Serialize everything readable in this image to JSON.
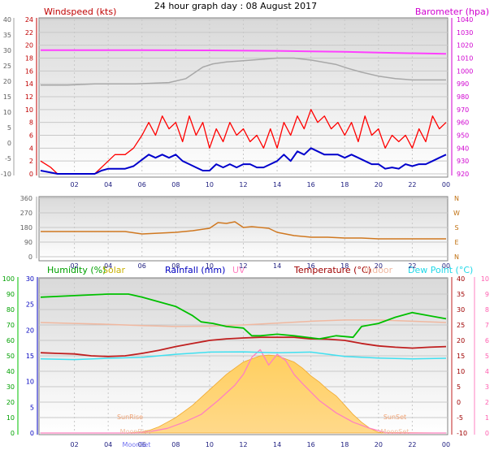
{
  "page": {
    "title": "24 hour graph day : 08 August 2017"
  },
  "colors": {
    "windspeed_label": "#c00000",
    "barometer": "#d000d0",
    "wind_avg": "#0000cc",
    "wind_gust": "#ff0000",
    "baro_line": "#ff40ff",
    "wind_dir_series": "#d07820",
    "humidity": "#00c000",
    "solar": "#f8b020",
    "rainfall": "#0000c0",
    "uv": "#ff80c0",
    "temperature": "#c02020",
    "indoor": "#f0b8a0",
    "dewpoint": "#40e0f0",
    "sunrise_text": "#f0a070",
    "moon_text": "#7070f0",
    "time_axis": "#202080"
  },
  "chart_data": [
    {
      "type": "line",
      "title": "24 hour graph day : 08 August 2017",
      "labels": {
        "left": "Windspeed (kts)",
        "right": "Barometer (hpa)"
      },
      "x_ticks": [
        "02",
        "04",
        "06",
        "08",
        "10",
        "12",
        "14",
        "16",
        "18",
        "20",
        "22",
        "00"
      ],
      "x_range_hours": [
        0,
        24
      ],
      "y_left_outer_ticks": [
        "40",
        "35",
        "30",
        "25",
        "20",
        "15",
        "10",
        "5",
        "0",
        "-5",
        "-10"
      ],
      "y_left_inner_ticks": [
        "24",
        "22",
        "20",
        "18",
        "16",
        "14",
        "12",
        "10",
        "8",
        "6",
        "4",
        "2",
        "0"
      ],
      "y_right_ticks": [
        "1040",
        "1030",
        "1020",
        "1010",
        "1000",
        "990",
        "980",
        "970",
        "960",
        "950",
        "940",
        "930",
        "920"
      ],
      "ylim_wind": [
        0,
        24
      ],
      "ylim_baro": [
        920,
        1044
      ],
      "series": [
        {
          "key": "barometer",
          "x": [
            0,
            6,
            10,
            14,
            16,
            18,
            20,
            24
          ],
          "y": [
            1019.4,
            1019.3,
            1019.2,
            1018.8,
            1018.4,
            1018.0,
            1017.4,
            1016.4
          ]
        },
        {
          "key": "gray",
          "x": [
            0,
            1.6,
            3.2,
            5.6,
            7.6,
            8.6,
            9.6,
            10.2,
            11,
            12,
            13,
            14,
            15,
            16,
            17.5,
            18.2,
            19,
            20,
            21,
            22,
            23,
            24
          ],
          "y": [
            13.8,
            13.8,
            14.0,
            14.0,
            14.2,
            14.8,
            16.6,
            17.1,
            17.4,
            17.6,
            17.8,
            18.0,
            18.0,
            17.7,
            17.0,
            16.4,
            15.8,
            15.2,
            14.8,
            14.6,
            14.6,
            14.6
          ]
        },
        {
          "key": "wind_gust",
          "x": [
            0,
            0.6,
            1,
            2,
            2.7,
            3.2,
            3.6,
            4,
            4.4,
            5,
            5.5,
            6,
            6.4,
            6.8,
            7.2,
            7.6,
            8,
            8.4,
            8.8,
            9.2,
            9.6,
            10,
            10.4,
            10.8,
            11.2,
            11.6,
            12,
            12.4,
            12.8,
            13.2,
            13.6,
            14,
            14.4,
            14.8,
            15.2,
            15.6,
            16,
            16.4,
            16.8,
            17.2,
            17.6,
            18,
            18.4,
            18.8,
            19.2,
            19.6,
            20,
            20.4,
            20.8,
            21.2,
            21.6,
            22,
            22.4,
            22.8,
            23.2,
            23.6,
            24
          ],
          "y": [
            2,
            1,
            0,
            0,
            0,
            0,
            1,
            2,
            3,
            3,
            4,
            6,
            8,
            6,
            9,
            7,
            8,
            5,
            9,
            6,
            8,
            4,
            7,
            5,
            8,
            6,
            7,
            5,
            6,
            4,
            7,
            4,
            8,
            6,
            9,
            7,
            10,
            8,
            9,
            7,
            8,
            6,
            8,
            5,
            9,
            6,
            7,
            4,
            6,
            5,
            6,
            4,
            7,
            5,
            9,
            7,
            8
          ]
        },
        {
          "key": "wind_avg",
          "x": [
            0,
            0.6,
            1,
            2,
            2.7,
            3.2,
            3.6,
            4,
            4.4,
            5,
            5.5,
            6,
            6.4,
            6.8,
            7.2,
            7.6,
            8,
            8.4,
            8.8,
            9.2,
            9.6,
            10,
            10.4,
            10.8,
            11.2,
            11.6,
            12,
            12.4,
            12.8,
            13.2,
            13.6,
            14,
            14.4,
            14.8,
            15.2,
            15.6,
            16,
            16.4,
            16.8,
            17.2,
            17.6,
            18,
            18.4,
            18.8,
            19.2,
            19.6,
            20,
            20.4,
            20.8,
            21.2,
            21.6,
            22,
            22.4,
            22.8,
            23.2,
            23.6,
            24
          ],
          "y": [
            0.5,
            0.2,
            0,
            0,
            0,
            0,
            0.5,
            0.8,
            0.8,
            0.8,
            1.2,
            2.2,
            3,
            2.5,
            3,
            2.5,
            3,
            2,
            1.5,
            1,
            0.5,
            0.5,
            1.5,
            1,
            1.5,
            1,
            1.5,
            1.5,
            1,
            1,
            1.5,
            2,
            3,
            2,
            3.5,
            3,
            4,
            3.5,
            3,
            3,
            3,
            2.5,
            3,
            2.5,
            2,
            1.5,
            1.5,
            0.8,
            1,
            0.8,
            1.5,
            1.2,
            1.5,
            1.5,
            2,
            2.5,
            3
          ]
        }
      ]
    },
    {
      "type": "line",
      "labels_right": [
        "N",
        "W",
        "S",
        "E",
        "N"
      ],
      "x_ticks": [
        "02",
        "04",
        "06",
        "08",
        "10",
        "12",
        "14",
        "16",
        "18",
        "20",
        "22",
        "00"
      ],
      "y_ticks": [
        "360",
        "270",
        "180",
        "90",
        "0"
      ],
      "ylim": [
        0,
        360
      ],
      "series": [
        {
          "key": "wind_direction",
          "x": [
            0,
            1,
            2,
            3,
            4,
            5,
            6,
            7,
            8,
            9,
            10,
            10.5,
            11,
            11.5,
            12,
            12.5,
            13,
            13.5,
            14,
            14.5,
            15,
            16,
            17,
            18,
            19,
            20,
            21,
            22,
            23,
            24
          ],
          "y": [
            155,
            155,
            155,
            155,
            155,
            155,
            140,
            145,
            150,
            160,
            175,
            210,
            205,
            215,
            180,
            185,
            180,
            175,
            150,
            140,
            130,
            120,
            120,
            115,
            115,
            110,
            110,
            110,
            110,
            110
          ]
        }
      ]
    },
    {
      "type": "area",
      "labels": {
        "humidity": "Humidity (%)",
        "solar": "Solar",
        "rainfall": "Rainfall (mm)",
        "uv": "UV",
        "temperature": "Temperature (°C)",
        "indoor": "Indoor",
        "dewpoint": "Dew Point (°C)"
      },
      "x_ticks": [
        "02",
        "04",
        "06",
        "08",
        "10",
        "12",
        "14",
        "16",
        "18",
        "20",
        "22",
        "00"
      ],
      "y_humidity_ticks": [
        "100",
        "90",
        "80",
        "70",
        "60",
        "50",
        "40",
        "30",
        "20",
        "10",
        "0"
      ],
      "y_rain_ticks": [
        "30",
        "25",
        "20",
        "15",
        "10",
        "5",
        "0"
      ],
      "y_temp_ticks": [
        "40",
        "35",
        "30",
        "25",
        "20",
        "15",
        "10",
        "5",
        "0",
        "-5",
        "-10"
      ],
      "y_uv_ticks": [
        "10",
        "9",
        "8",
        "7",
        "6",
        "5",
        "4",
        "3",
        "2",
        "1",
        "0"
      ],
      "ylim_temp": [
        -10,
        40
      ],
      "annotations": [
        "SunRise",
        "SunSet",
        "MoonRise",
        "MoonSet",
        "MoonSet"
      ],
      "series": [
        {
          "key": "humidity",
          "x": [
            0,
            2,
            4,
            5.2,
            6,
            8,
            9,
            9.5,
            10.2,
            11,
            12,
            12.5,
            13,
            14,
            15,
            16.5,
            17.5,
            18.5,
            19,
            20,
            21,
            22,
            23,
            24
          ],
          "y": [
            88,
            89,
            90,
            90,
            88,
            82,
            76,
            72,
            71,
            69,
            68,
            63,
            63,
            64,
            63,
            61,
            63,
            62,
            69,
            71,
            75,
            78,
            76,
            74
          ]
        },
        {
          "key": "indoor",
          "x": [
            0,
            2,
            4,
            6,
            8,
            10,
            12,
            14,
            16,
            18,
            20,
            22,
            24
          ],
          "y": [
            25.8,
            25.5,
            25.2,
            24.8,
            24.5,
            24.6,
            25.0,
            25.6,
            26.2,
            26.6,
            26.6,
            26.2,
            25.8
          ]
        },
        {
          "key": "temperature",
          "x": [
            0,
            1,
            2,
            3,
            4,
            5,
            6,
            7,
            8,
            9,
            10,
            11,
            12,
            13,
            14,
            15,
            16,
            17,
            18,
            19,
            20,
            21,
            22,
            23,
            24
          ],
          "y": [
            16.0,
            15.8,
            15.6,
            15.0,
            14.8,
            15.0,
            15.8,
            16.8,
            18.0,
            19.0,
            20.0,
            20.5,
            20.8,
            21.0,
            21.0,
            21.0,
            20.5,
            20.4,
            20.0,
            19.0,
            18.2,
            17.8,
            17.5,
            17.8,
            18.0
          ]
        },
        {
          "key": "dewpoint",
          "x": [
            0,
            2,
            4,
            6,
            8,
            10,
            12,
            14,
            16,
            18,
            20,
            22,
            24
          ],
          "y": [
            14.0,
            13.8,
            14.2,
            14.5,
            15.5,
            16.2,
            16.3,
            16.0,
            16.2,
            14.8,
            14.3,
            14.0,
            14.2
          ]
        },
        {
          "key": "solar",
          "x": [
            0,
            5,
            6,
            6.5,
            7,
            7.5,
            8,
            8.5,
            9,
            9.5,
            10,
            10.5,
            11,
            11.5,
            12,
            12.5,
            13,
            13.5,
            14,
            14.5,
            15,
            15.5,
            16,
            16.5,
            17,
            17.5,
            18,
            18.5,
            19,
            19.5,
            20,
            24
          ],
          "y": [
            -10,
            -10,
            -9.6,
            -9.0,
            -8.0,
            -6.5,
            -5.0,
            -3.0,
            -1.0,
            1.5,
            4.0,
            6.5,
            9.0,
            11.0,
            13.0,
            14.0,
            15.0,
            15.2,
            15.0,
            14.0,
            13.0,
            11.0,
            8.5,
            6.5,
            4.0,
            2.0,
            -1.0,
            -4.0,
            -6.5,
            -8.5,
            -9.8,
            -10
          ]
        },
        {
          "key": "uv",
          "x": [
            0,
            5.6,
            6.5,
            7.5,
            8.5,
            9.5,
            10.5,
            11.5,
            12,
            12.5,
            13,
            13.5,
            14,
            14.5,
            15,
            15.5,
            16.5,
            17.5,
            18.5,
            19.5,
            20.5,
            24
          ],
          "y": [
            -10,
            -10,
            -9.5,
            -8.5,
            -6.5,
            -4.0,
            0.5,
            5.5,
            9.0,
            14.5,
            17.0,
            12.0,
            15.5,
            13.5,
            9.0,
            6.0,
            0.5,
            -3.5,
            -6.5,
            -8.5,
            -10,
            -10
          ]
        }
      ]
    }
  ]
}
